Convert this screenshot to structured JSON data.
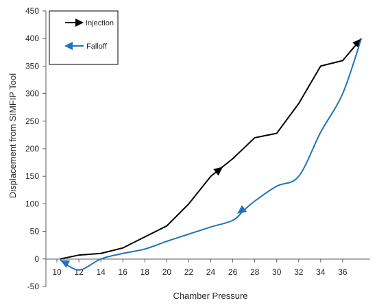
{
  "chart_data": {
    "type": "line",
    "xlabel": "Chamber Pressure",
    "ylabel": "Displacement from SIMFIP Tool",
    "xlim": [
      9,
      38.5
    ],
    "ylim": [
      -50,
      450
    ],
    "x_ticks": [
      10,
      12,
      14,
      16,
      18,
      20,
      22,
      24,
      26,
      28,
      30,
      32,
      34,
      36
    ],
    "y_ticks": [
      -50,
      0,
      50,
      100,
      150,
      200,
      250,
      300,
      350,
      400,
      450
    ],
    "grid": false,
    "legend_position": "top-left",
    "series": [
      {
        "name": "Injection",
        "color": "#000000",
        "smooth": false,
        "points": [
          [
            10.3,
            0
          ],
          [
            12,
            7
          ],
          [
            14,
            10
          ],
          [
            16,
            20
          ],
          [
            18,
            40
          ],
          [
            20,
            60
          ],
          [
            22,
            100
          ],
          [
            24,
            150
          ],
          [
            26,
            182
          ],
          [
            28,
            220
          ],
          [
            30,
            228
          ],
          [
            32,
            282
          ],
          [
            34,
            350
          ],
          [
            36,
            360
          ],
          [
            37.7,
            400
          ]
        ],
        "arrows_at": [
          [
            25.1,
            167
          ],
          [
            37.7,
            400
          ]
        ]
      },
      {
        "name": "Falloff",
        "color": "#1f73b8",
        "smooth": true,
        "points": [
          [
            37.7,
            400
          ],
          [
            36,
            300
          ],
          [
            34,
            230
          ],
          [
            32,
            150
          ],
          [
            30,
            132
          ],
          [
            28,
            105
          ],
          [
            27,
            88
          ],
          [
            26,
            70
          ],
          [
            24,
            58
          ],
          [
            22,
            45
          ],
          [
            20,
            32
          ],
          [
            18,
            18
          ],
          [
            16,
            10
          ],
          [
            14,
            0
          ],
          [
            12,
            -20
          ],
          [
            10.3,
            -2
          ]
        ],
        "arrows_at": [
          [
            26.4,
            82
          ],
          [
            10.3,
            -2
          ]
        ]
      }
    ]
  }
}
